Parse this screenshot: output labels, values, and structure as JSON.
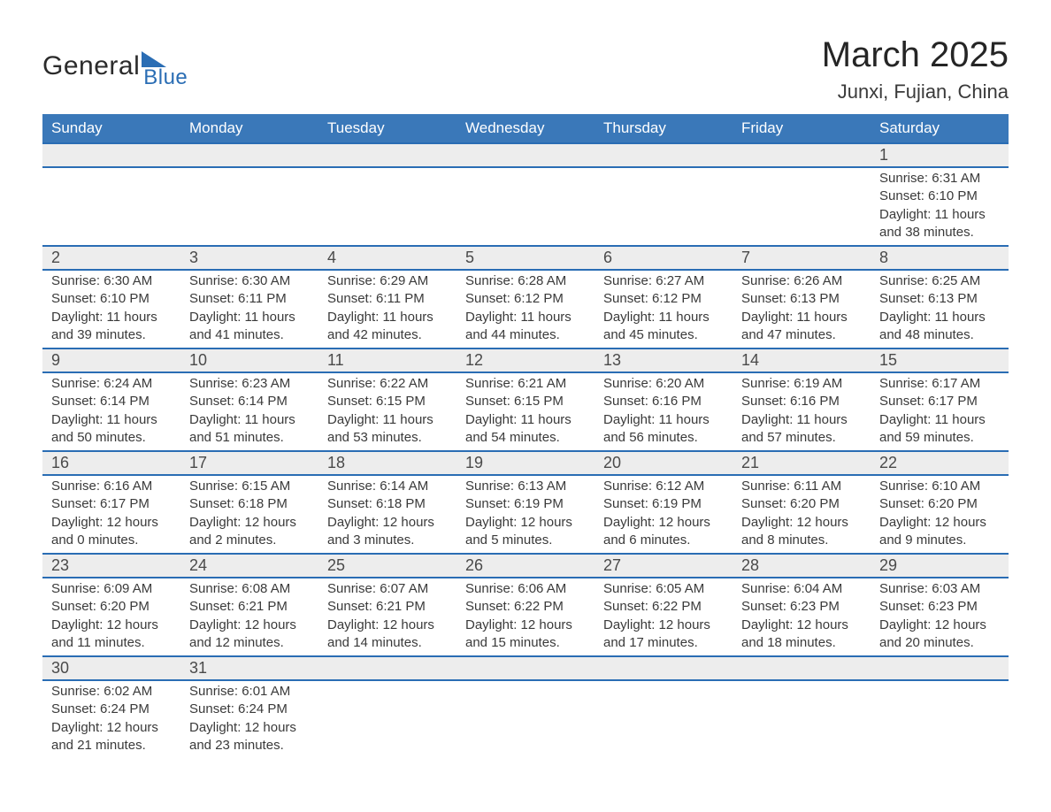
{
  "logo": {
    "text1": "General",
    "text2": "Blue"
  },
  "header": {
    "title": "March 2025",
    "location": "Junxi, Fujian, China"
  },
  "style": {
    "header_bg": "#3a78b9",
    "header_text": "#ffffff",
    "row_border": "#2a6db4",
    "daynum_bg": "#ededed",
    "body_text": "#3a3a3a",
    "title_fontsize_pt": 30,
    "location_fontsize_pt": 17,
    "dayheader_fontsize_pt": 13,
    "daynum_fontsize_pt": 14,
    "detail_fontsize_pt": 11
  },
  "day_headers": [
    "Sunday",
    "Monday",
    "Tuesday",
    "Wednesday",
    "Thursday",
    "Friday",
    "Saturday"
  ],
  "weeks": [
    [
      null,
      null,
      null,
      null,
      null,
      null,
      {
        "n": "1",
        "sr": "Sunrise: 6:31 AM",
        "ss": "Sunset: 6:10 PM",
        "d1": "Daylight: 11 hours",
        "d2": "and 38 minutes."
      }
    ],
    [
      {
        "n": "2",
        "sr": "Sunrise: 6:30 AM",
        "ss": "Sunset: 6:10 PM",
        "d1": "Daylight: 11 hours",
        "d2": "and 39 minutes."
      },
      {
        "n": "3",
        "sr": "Sunrise: 6:30 AM",
        "ss": "Sunset: 6:11 PM",
        "d1": "Daylight: 11 hours",
        "d2": "and 41 minutes."
      },
      {
        "n": "4",
        "sr": "Sunrise: 6:29 AM",
        "ss": "Sunset: 6:11 PM",
        "d1": "Daylight: 11 hours",
        "d2": "and 42 minutes."
      },
      {
        "n": "5",
        "sr": "Sunrise: 6:28 AM",
        "ss": "Sunset: 6:12 PM",
        "d1": "Daylight: 11 hours",
        "d2": "and 44 minutes."
      },
      {
        "n": "6",
        "sr": "Sunrise: 6:27 AM",
        "ss": "Sunset: 6:12 PM",
        "d1": "Daylight: 11 hours",
        "d2": "and 45 minutes."
      },
      {
        "n": "7",
        "sr": "Sunrise: 6:26 AM",
        "ss": "Sunset: 6:13 PM",
        "d1": "Daylight: 11 hours",
        "d2": "and 47 minutes."
      },
      {
        "n": "8",
        "sr": "Sunrise: 6:25 AM",
        "ss": "Sunset: 6:13 PM",
        "d1": "Daylight: 11 hours",
        "d2": "and 48 minutes."
      }
    ],
    [
      {
        "n": "9",
        "sr": "Sunrise: 6:24 AM",
        "ss": "Sunset: 6:14 PM",
        "d1": "Daylight: 11 hours",
        "d2": "and 50 minutes."
      },
      {
        "n": "10",
        "sr": "Sunrise: 6:23 AM",
        "ss": "Sunset: 6:14 PM",
        "d1": "Daylight: 11 hours",
        "d2": "and 51 minutes."
      },
      {
        "n": "11",
        "sr": "Sunrise: 6:22 AM",
        "ss": "Sunset: 6:15 PM",
        "d1": "Daylight: 11 hours",
        "d2": "and 53 minutes."
      },
      {
        "n": "12",
        "sr": "Sunrise: 6:21 AM",
        "ss": "Sunset: 6:15 PM",
        "d1": "Daylight: 11 hours",
        "d2": "and 54 minutes."
      },
      {
        "n": "13",
        "sr": "Sunrise: 6:20 AM",
        "ss": "Sunset: 6:16 PM",
        "d1": "Daylight: 11 hours",
        "d2": "and 56 minutes."
      },
      {
        "n": "14",
        "sr": "Sunrise: 6:19 AM",
        "ss": "Sunset: 6:16 PM",
        "d1": "Daylight: 11 hours",
        "d2": "and 57 minutes."
      },
      {
        "n": "15",
        "sr": "Sunrise: 6:17 AM",
        "ss": "Sunset: 6:17 PM",
        "d1": "Daylight: 11 hours",
        "d2": "and 59 minutes."
      }
    ],
    [
      {
        "n": "16",
        "sr": "Sunrise: 6:16 AM",
        "ss": "Sunset: 6:17 PM",
        "d1": "Daylight: 12 hours",
        "d2": "and 0 minutes."
      },
      {
        "n": "17",
        "sr": "Sunrise: 6:15 AM",
        "ss": "Sunset: 6:18 PM",
        "d1": "Daylight: 12 hours",
        "d2": "and 2 minutes."
      },
      {
        "n": "18",
        "sr": "Sunrise: 6:14 AM",
        "ss": "Sunset: 6:18 PM",
        "d1": "Daylight: 12 hours",
        "d2": "and 3 minutes."
      },
      {
        "n": "19",
        "sr": "Sunrise: 6:13 AM",
        "ss": "Sunset: 6:19 PM",
        "d1": "Daylight: 12 hours",
        "d2": "and 5 minutes."
      },
      {
        "n": "20",
        "sr": "Sunrise: 6:12 AM",
        "ss": "Sunset: 6:19 PM",
        "d1": "Daylight: 12 hours",
        "d2": "and 6 minutes."
      },
      {
        "n": "21",
        "sr": "Sunrise: 6:11 AM",
        "ss": "Sunset: 6:20 PM",
        "d1": "Daylight: 12 hours",
        "d2": "and 8 minutes."
      },
      {
        "n": "22",
        "sr": "Sunrise: 6:10 AM",
        "ss": "Sunset: 6:20 PM",
        "d1": "Daylight: 12 hours",
        "d2": "and 9 minutes."
      }
    ],
    [
      {
        "n": "23",
        "sr": "Sunrise: 6:09 AM",
        "ss": "Sunset: 6:20 PM",
        "d1": "Daylight: 12 hours",
        "d2": "and 11 minutes."
      },
      {
        "n": "24",
        "sr": "Sunrise: 6:08 AM",
        "ss": "Sunset: 6:21 PM",
        "d1": "Daylight: 12 hours",
        "d2": "and 12 minutes."
      },
      {
        "n": "25",
        "sr": "Sunrise: 6:07 AM",
        "ss": "Sunset: 6:21 PM",
        "d1": "Daylight: 12 hours",
        "d2": "and 14 minutes."
      },
      {
        "n": "26",
        "sr": "Sunrise: 6:06 AM",
        "ss": "Sunset: 6:22 PM",
        "d1": "Daylight: 12 hours",
        "d2": "and 15 minutes."
      },
      {
        "n": "27",
        "sr": "Sunrise: 6:05 AM",
        "ss": "Sunset: 6:22 PM",
        "d1": "Daylight: 12 hours",
        "d2": "and 17 minutes."
      },
      {
        "n": "28",
        "sr": "Sunrise: 6:04 AM",
        "ss": "Sunset: 6:23 PM",
        "d1": "Daylight: 12 hours",
        "d2": "and 18 minutes."
      },
      {
        "n": "29",
        "sr": "Sunrise: 6:03 AM",
        "ss": "Sunset: 6:23 PM",
        "d1": "Daylight: 12 hours",
        "d2": "and 20 minutes."
      }
    ],
    [
      {
        "n": "30",
        "sr": "Sunrise: 6:02 AM",
        "ss": "Sunset: 6:24 PM",
        "d1": "Daylight: 12 hours",
        "d2": "and 21 minutes."
      },
      {
        "n": "31",
        "sr": "Sunrise: 6:01 AM",
        "ss": "Sunset: 6:24 PM",
        "d1": "Daylight: 12 hours",
        "d2": "and 23 minutes."
      },
      null,
      null,
      null,
      null,
      null
    ]
  ]
}
